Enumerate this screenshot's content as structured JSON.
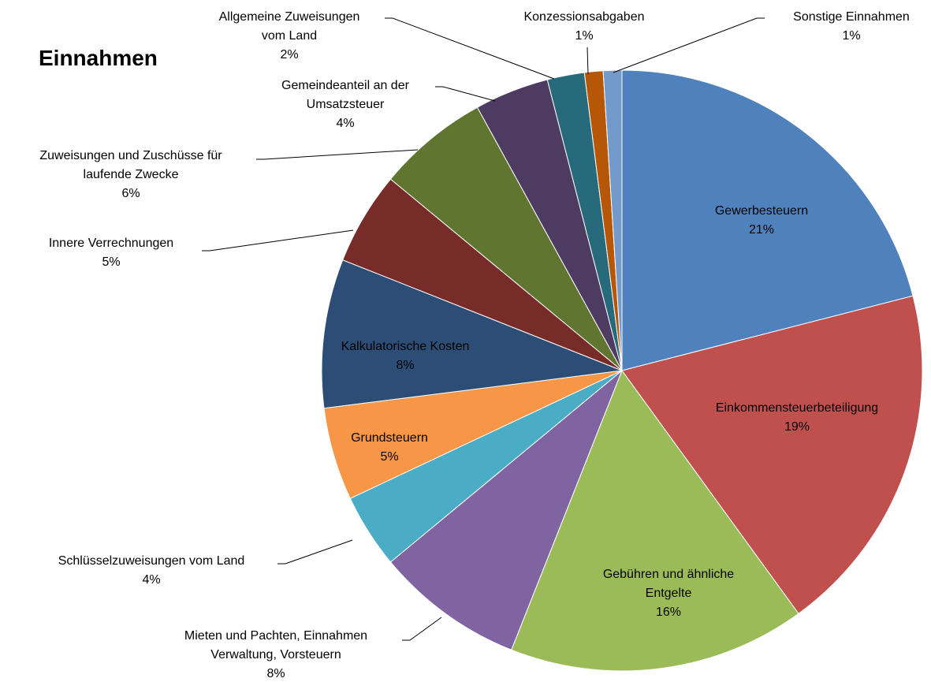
{
  "chart_data": {
    "type": "pie",
    "title": "Einnahmen",
    "categories": [
      "Gewerbesteuern",
      "Einkommensteuerbeteiligung",
      "Gebühren und ähnliche Entgelte",
      "Mieten und Pachten, Einnahmen Verwaltung, Vorsteuern",
      "Schlüsselzuweisungen vom Land",
      "Grundsteuern",
      "Kalkulatorische Kosten",
      "Innere Verrechnungen",
      "Zuweisungen und Zuschüsse für laufende Zwecke",
      "Gemeindeanteil an der Umsatzsteuer",
      "Allgemeine Zuweisungen vom Land",
      "Konzessionsabgaben",
      "Sonstige Einnahmen"
    ],
    "values": [
      21,
      19,
      16,
      8,
      4,
      5,
      8,
      5,
      6,
      4,
      2,
      1,
      1
    ],
    "value_labels": [
      "21%",
      "19%",
      "16%",
      "8%",
      "4%",
      "5%",
      "8%",
      "5%",
      "6%",
      "4%",
      "2%",
      "1%",
      "1%"
    ],
    "colors": [
      "#4f81bd",
      "#c0504d",
      "#9bbb59",
      "#8064a2",
      "#4bacc6",
      "#f79646",
      "#2c4d75",
      "#772c2a",
      "#5f7530",
      "#4d3b62",
      "#276a7c",
      "#b65708",
      "#729aca"
    ]
  }
}
